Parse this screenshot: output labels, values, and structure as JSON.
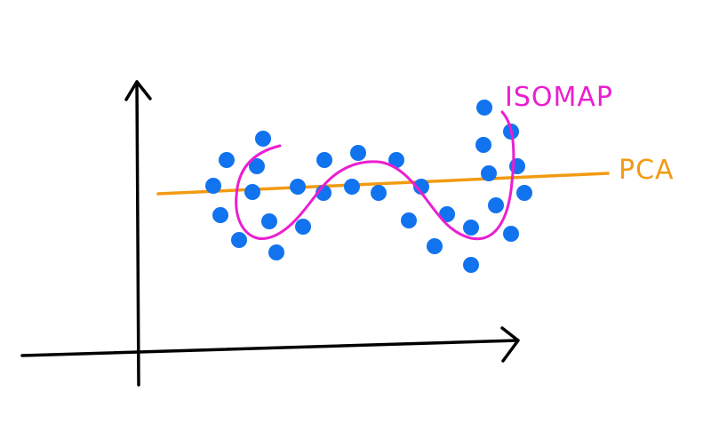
{
  "labels": {
    "isomap": "ISOMAP",
    "pca": "PCA"
  },
  "colors": {
    "background": "#ffffff",
    "axes": "#000000",
    "points": "#1273ef",
    "isomap": "#ea1fd0",
    "pca": "#f29a12"
  },
  "icons": {
    "y_axis_arrow": "arrow-up-icon",
    "x_axis_arrow": "arrow-right-icon"
  }
}
